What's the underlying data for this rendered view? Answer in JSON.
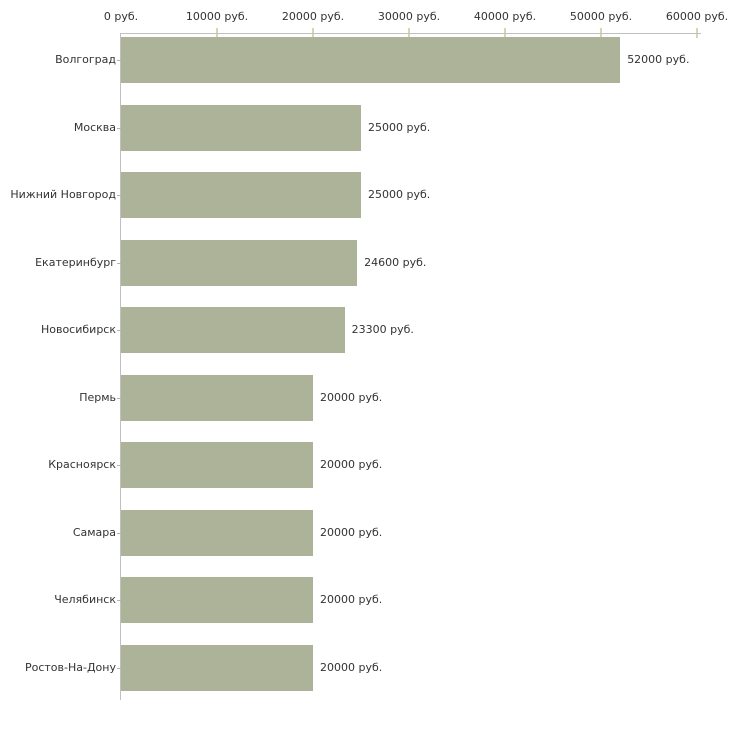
{
  "chart_data": {
    "type": "bar",
    "orientation": "horizontal",
    "title": "",
    "xlabel": "",
    "ylabel": "",
    "categories": [
      "Волгоград",
      "Москва",
      "Нижний Новгород",
      "Екатеринбург",
      "Новосибирск",
      "Пермь",
      "Красноярск",
      "Самара",
      "Челябинск",
      "Ростов-На-Дону"
    ],
    "values": [
      52000,
      25000,
      25000,
      24600,
      23300,
      20000,
      20000,
      20000,
      20000,
      20000
    ],
    "value_labels": [
      "52000 руб.",
      "25000 руб.",
      "25000 руб.",
      "24600 руб.",
      "23300 руб.",
      "20000 руб.",
      "20000 руб.",
      "20000 руб.",
      "20000 руб.",
      "20000 руб."
    ],
    "x_axis": {
      "position": "top",
      "range": [
        0,
        60000
      ],
      "ticks": [
        0,
        10000,
        20000,
        30000,
        40000,
        50000,
        60000
      ],
      "tick_labels": [
        "0 руб.",
        "10000 руб.",
        "20000 руб.",
        "30000 руб.",
        "40000 руб.",
        "50000 руб.",
        "60000 руб."
      ]
    },
    "grid": false,
    "legend": false,
    "colors": {
      "bar": "#acb399",
      "axis_line": "#c0c0c0",
      "numeric_tick": "#d6d6b4",
      "category_tick": "#b3b3b3",
      "text": "#333333",
      "background": "#ffffff"
    }
  }
}
